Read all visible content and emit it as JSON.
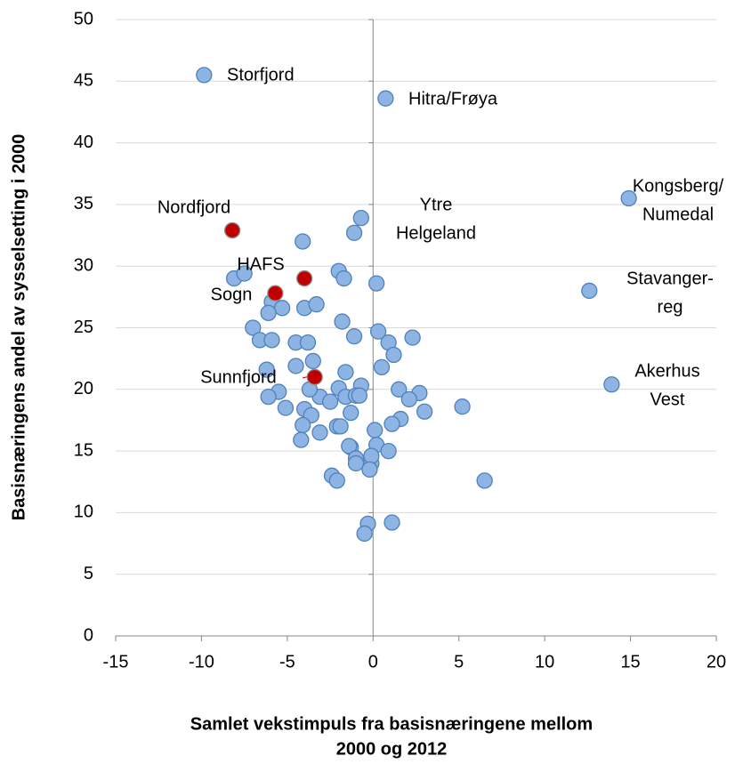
{
  "chart_data": {
    "type": "scatter",
    "y_label": "Basisnæringens andel av sysselsetting i 2000",
    "x_label": [
      "Samlet vekstimpuls fra basisnæringene mellom",
      "2000 og 2012"
    ],
    "xlim": [
      -15,
      20
    ],
    "xticks": [
      -15,
      -10,
      -5,
      0,
      5,
      10,
      15,
      20
    ],
    "ylim": [
      0,
      50
    ],
    "yticks": [
      0,
      5,
      10,
      15,
      20,
      25,
      30,
      35,
      40,
      45,
      50
    ],
    "grid": true,
    "series": [
      {
        "color": "#8db4e2",
        "x": [
          -9.85,
          0.73,
          14.9,
          12.6,
          13.9,
          -0.7,
          -1.1,
          -4.1,
          -2.0,
          -1.7,
          0.2,
          -8.1,
          -7.5,
          -5.9,
          -5.3,
          -6.1,
          -4.0,
          -3.3,
          -1.8,
          -1.1,
          -7.0,
          -6.6,
          -5.9,
          -4.5,
          -3.8,
          0.3,
          0.9,
          2.3,
          1.2,
          0.5,
          -3.5,
          -4.5,
          -6.2,
          -1.6,
          -0.7,
          -2.0,
          -1.6,
          -1.0,
          -3.1,
          -5.5,
          -6.1,
          -3.7,
          -0.8,
          1.5,
          2.7,
          2.1,
          5.2,
          3.0,
          -4.0,
          -5.1,
          -3.6,
          -2.5,
          -1.3,
          1.6,
          1.1,
          -4.1,
          -2.1,
          -1.9,
          0.1,
          -3.1,
          -4.2,
          -1.3,
          0.2,
          0.9,
          -1.4,
          -1.0,
          -1.0,
          -0.1,
          -0.1,
          -0.2,
          -2.4,
          -2.1,
          6.5,
          -0.3,
          1.1,
          -0.5
        ],
        "values": [
          45.5,
          43.6,
          35.5,
          28.0,
          20.4,
          33.9,
          32.7,
          32.0,
          29.6,
          29.0,
          28.6,
          29.0,
          29.4,
          27.1,
          26.6,
          26.2,
          26.6,
          26.9,
          25.5,
          24.3,
          25.0,
          24.0,
          24.0,
          23.8,
          23.8,
          24.7,
          23.8,
          24.2,
          22.8,
          21.8,
          22.3,
          21.9,
          21.6,
          21.4,
          20.3,
          20.1,
          19.4,
          19.5,
          19.4,
          19.8,
          19.4,
          20.0,
          19.5,
          20.0,
          19.7,
          19.2,
          18.6,
          18.2,
          18.4,
          18.5,
          17.9,
          19.0,
          18.1,
          17.6,
          17.2,
          17.1,
          17.0,
          17.0,
          16.7,
          16.5,
          15.9,
          15.3,
          15.5,
          15.0,
          15.4,
          14.4,
          14.0,
          14.0,
          14.6,
          13.5,
          13.0,
          12.6,
          12.6,
          9.1,
          9.2,
          8.3
        ]
      },
      {
        "color": "#c00000",
        "x": [
          -8.2,
          -4.0,
          -5.7,
          -3.4
        ],
        "values": [
          32.9,
          29.0,
          27.8,
          21.0
        ]
      }
    ],
    "annotations": [
      [
        "Storfjord"
      ],
      [
        "Hitra/Frøya"
      ],
      [
        "Kongsberg/",
        "Numedal"
      ],
      [
        "Ytre",
        "Helgeland"
      ],
      [
        "Nordfjord"
      ],
      [
        "HAFS"
      ],
      [
        "Sogn"
      ],
      [
        "Sunnfjord"
      ],
      [
        "Stavanger-",
        "reg"
      ],
      [
        "Akerhus",
        "Vest"
      ]
    ]
  }
}
